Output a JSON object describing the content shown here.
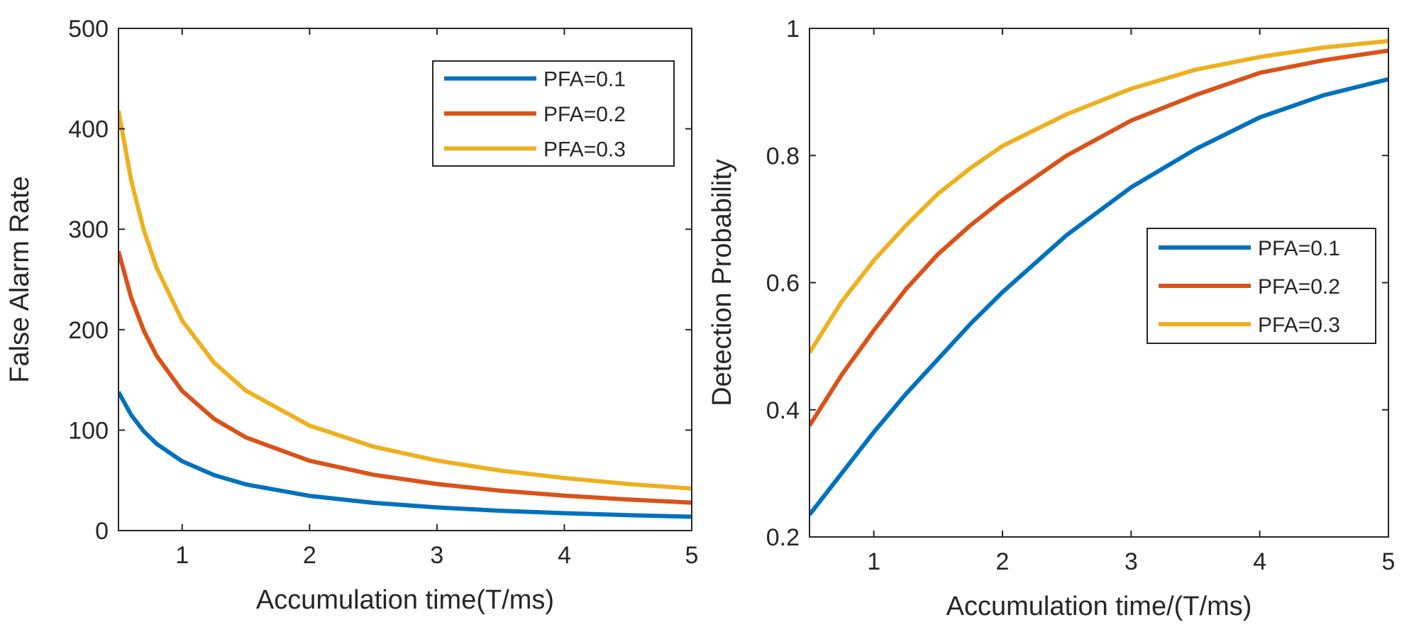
{
  "chart_data": [
    {
      "type": "line",
      "xlabel": "Accumulation time(T/ms)",
      "ylabel": "False Alarm Rate",
      "xlim": [
        0.5,
        5
      ],
      "ylim": [
        0,
        500
      ],
      "xticks": [
        1,
        2,
        3,
        4,
        5
      ],
      "yticks": [
        0,
        100,
        200,
        300,
        400,
        500
      ],
      "legend_position": "top-right",
      "series": [
        {
          "name": "PFA=0.1",
          "color": "#0072BD",
          "x": [
            0.5,
            0.6,
            0.7,
            0.8,
            1,
            1.25,
            1.5,
            2,
            2.5,
            3,
            3.5,
            4,
            4.5,
            5
          ],
          "y": [
            138,
            115,
            98.6,
            86.3,
            69,
            55.2,
            46,
            34.5,
            27.6,
            23,
            19.7,
            17.3,
            15.3,
            13.8
          ]
        },
        {
          "name": "PFA=0.2",
          "color": "#D95319",
          "x": [
            0.5,
            0.6,
            0.7,
            0.8,
            1,
            1.25,
            1.5,
            2,
            2.5,
            3,
            3.5,
            4,
            4.5,
            5
          ],
          "y": [
            278,
            231.7,
            198.6,
            173.8,
            139,
            111.2,
            92.7,
            69.5,
            55.6,
            46.3,
            39.7,
            34.8,
            30.9,
            27.8
          ]
        },
        {
          "name": "PFA=0.3",
          "color": "#EDB120",
          "x": [
            0.5,
            0.6,
            0.7,
            0.8,
            1,
            1.25,
            1.5,
            2,
            2.5,
            3,
            3.5,
            4,
            4.5,
            5
          ],
          "y": [
            418,
            348.3,
            298.6,
            261.3,
            209,
            167.2,
            139.3,
            104.5,
            83.6,
            69.7,
            59.7,
            52.3,
            46.4,
            41.8
          ]
        }
      ]
    },
    {
      "type": "line",
      "xlabel": "Accumulation time/(T/ms)",
      "ylabel": "Detection Probability",
      "xlim": [
        0.5,
        5
      ],
      "ylim": [
        0.2,
        1
      ],
      "xticks": [
        1,
        2,
        3,
        4,
        5
      ],
      "yticks": [
        0.2,
        0.4,
        0.6,
        0.8,
        1
      ],
      "ytick_labels": [
        "0.2",
        "0.4",
        "0.6",
        "0.8",
        "1"
      ],
      "legend_position": "right",
      "series": [
        {
          "name": "PFA=0.1",
          "color": "#0072BD",
          "x": [
            0.5,
            0.75,
            1,
            1.25,
            1.5,
            1.75,
            2,
            2.5,
            3,
            3.5,
            4,
            4.5,
            5
          ],
          "y": [
            0.235,
            0.3,
            0.365,
            0.425,
            0.48,
            0.535,
            0.585,
            0.675,
            0.75,
            0.81,
            0.86,
            0.895,
            0.92
          ]
        },
        {
          "name": "PFA=0.2",
          "color": "#D95319",
          "x": [
            0.5,
            0.75,
            1,
            1.25,
            1.5,
            1.75,
            2,
            2.5,
            3,
            3.5,
            4,
            4.5,
            5
          ],
          "y": [
            0.375,
            0.455,
            0.525,
            0.59,
            0.645,
            0.69,
            0.73,
            0.8,
            0.855,
            0.895,
            0.93,
            0.95,
            0.965
          ]
        },
        {
          "name": "PFA=0.3",
          "color": "#EDB120",
          "x": [
            0.5,
            0.75,
            1,
            1.25,
            1.5,
            1.75,
            2,
            2.5,
            3,
            3.5,
            4,
            4.5,
            5
          ],
          "y": [
            0.49,
            0.57,
            0.635,
            0.69,
            0.74,
            0.78,
            0.815,
            0.865,
            0.905,
            0.935,
            0.955,
            0.97,
            0.98
          ]
        }
      ]
    }
  ]
}
